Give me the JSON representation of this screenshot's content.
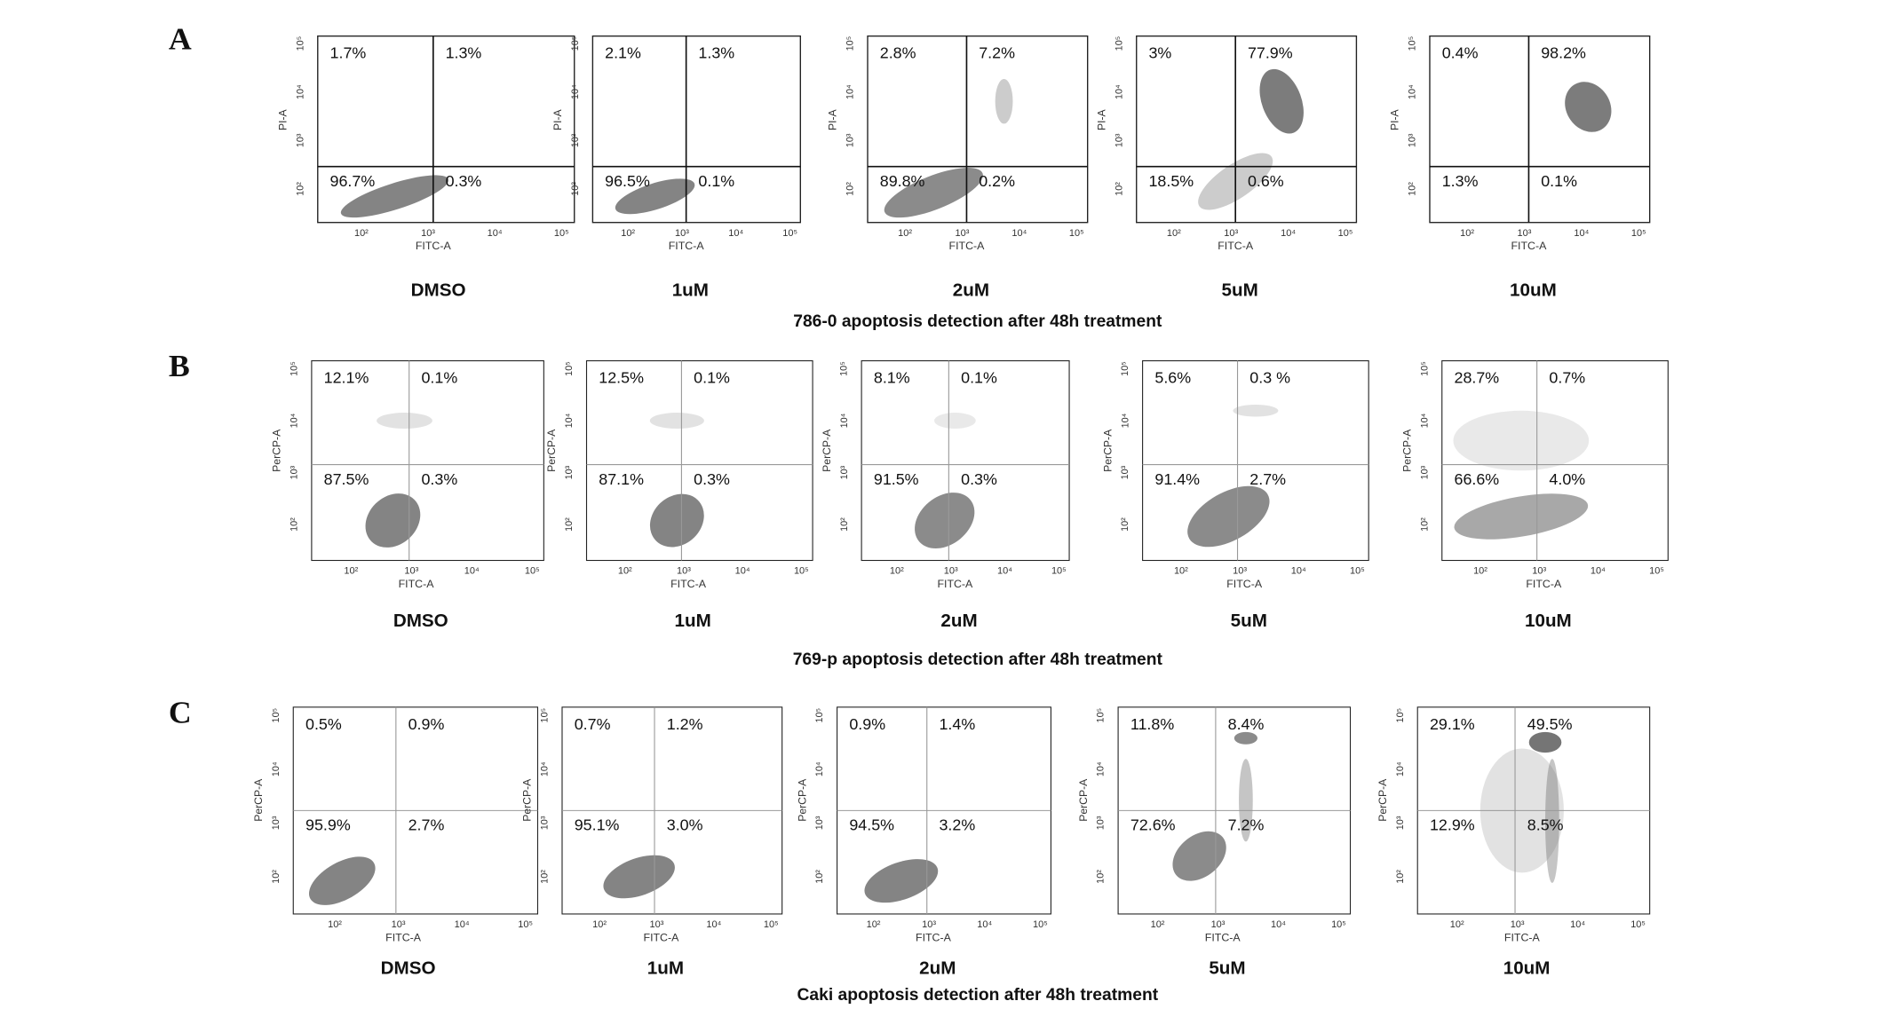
{
  "figure": {
    "axis_ticks": [
      "10²",
      "10³",
      "10⁴",
      "10⁵"
    ],
    "panels": [
      {
        "letter": "A",
        "caption": "786-0 apoptosis detection after 48h treatment",
        "x_label": "FITC-A",
        "y_label": "PI-A",
        "plots": [
          {
            "label": "DMSO",
            "quadrants": [
              "1.7%",
              "1.3%",
              "96.7%",
              "0.3%"
            ]
          },
          {
            "label": "1uM",
            "quadrants": [
              "2.1%",
              "1.3%",
              "96.5%",
              "0.1%"
            ]
          },
          {
            "label": "2uM",
            "quadrants": [
              "2.8%",
              "7.2%",
              "89.8%",
              "0.2%"
            ]
          },
          {
            "label": "5uM",
            "quadrants": [
              "3%",
              "77.9%",
              "18.5%",
              "0.6%"
            ]
          },
          {
            "label": "10uM",
            "quadrants": [
              "0.4%",
              "98.2%",
              "1.3%",
              "0.1%"
            ]
          }
        ]
      },
      {
        "letter": "B",
        "caption": "769-p apoptosis detection after 48h treatment",
        "x_label": "FITC-A",
        "y_label": "PerCP-A",
        "plots": [
          {
            "label": "DMSO",
            "quadrants": [
              "12.1%",
              "0.1%",
              "87.5%",
              "0.3%"
            ]
          },
          {
            "label": "1uM",
            "quadrants": [
              "12.5%",
              "0.1%",
              "87.1%",
              "0.3%"
            ]
          },
          {
            "label": "2uM",
            "quadrants": [
              "8.1%",
              "0.1%",
              "91.5%",
              "0.3%"
            ]
          },
          {
            "label": "5uM",
            "quadrants": [
              "5.6%",
              "0.3 %",
              "91.4%",
              "2.7%"
            ]
          },
          {
            "label": "10uM",
            "quadrants": [
              "28.7%",
              "0.7%",
              "66.6%",
              "4.0%"
            ]
          }
        ]
      },
      {
        "letter": "C",
        "caption": "Caki apoptosis detection after 48h treatment",
        "x_label": "FITC-A",
        "y_label": "PerCP-A",
        "plots": [
          {
            "label": "DMSO",
            "quadrants": [
              "0.5%",
              "0.9%",
              "95.9%",
              "2.7%"
            ]
          },
          {
            "label": "1uM",
            "quadrants": [
              "0.7%",
              "1.2%",
              "95.1%",
              "3.0%"
            ]
          },
          {
            "label": "2uM",
            "quadrants": [
              "0.9%",
              "1.4%",
              "94.5%",
              "3.2%"
            ]
          },
          {
            "label": "5uM",
            "quadrants": [
              "11.8%",
              "8.4%",
              "72.6%",
              "7.2%"
            ]
          },
          {
            "label": "10uM",
            "quadrants": [
              "29.1%",
              "49.5%",
              "12.9%",
              "8.5%"
            ]
          }
        ]
      }
    ]
  }
}
